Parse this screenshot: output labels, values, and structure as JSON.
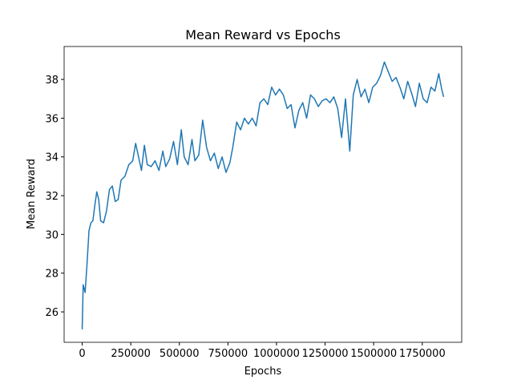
{
  "chart_data": {
    "type": "line",
    "title": "Mean Reward vs Epochs",
    "xlabel": "Epochs",
    "ylabel": "Mean Reward",
    "color": "#1f77b4",
    "x": [
      0,
      5000,
      15000,
      25000,
      35000,
      45000,
      55000,
      65000,
      75000,
      85000,
      95000,
      110000,
      125000,
      140000,
      155000,
      170000,
      185000,
      200000,
      220000,
      240000,
      260000,
      275000,
      290000,
      305000,
      320000,
      335000,
      355000,
      375000,
      395000,
      415000,
      430000,
      450000,
      470000,
      490000,
      510000,
      525000,
      545000,
      565000,
      580000,
      600000,
      620000,
      640000,
      660000,
      680000,
      700000,
      720000,
      740000,
      760000,
      775000,
      795000,
      815000,
      835000,
      855000,
      875000,
      895000,
      915000,
      935000,
      955000,
      975000,
      995000,
      1015000,
      1035000,
      1055000,
      1075000,
      1095000,
      1115000,
      1135000,
      1155000,
      1175000,
      1195000,
      1215000,
      1235000,
      1255000,
      1275000,
      1295000,
      1315000,
      1335000,
      1355000,
      1377000,
      1395000,
      1415000,
      1435000,
      1455000,
      1475000,
      1495000,
      1515000,
      1535000,
      1555000,
      1575000,
      1595000,
      1615000,
      1635000,
      1655000,
      1675000,
      1695000,
      1715000,
      1735000,
      1755000,
      1775000,
      1795000,
      1815000,
      1835000,
      1850000,
      1860000
    ],
    "values": [
      25.1,
      27.4,
      27.0,
      28.5,
      30.2,
      30.6,
      30.7,
      31.5,
      32.2,
      31.8,
      30.7,
      30.6,
      31.2,
      32.3,
      32.5,
      31.7,
      31.8,
      32.8,
      33.0,
      33.6,
      33.8,
      34.7,
      34.0,
      33.3,
      34.6,
      33.6,
      33.5,
      33.8,
      33.3,
      34.3,
      33.5,
      33.9,
      34.8,
      33.6,
      35.4,
      34.0,
      33.6,
      34.9,
      33.8,
      34.1,
      35.9,
      34.5,
      33.8,
      34.2,
      33.4,
      34.0,
      33.2,
      33.7,
      34.5,
      35.8,
      35.4,
      36.0,
      35.7,
      36.0,
      35.6,
      36.8,
      37.0,
      36.7,
      37.6,
      37.2,
      37.5,
      37.2,
      36.5,
      36.7,
      35.5,
      36.4,
      36.8,
      36.0,
      37.2,
      37.0,
      36.6,
      36.9,
      37.0,
      36.8,
      37.1,
      36.5,
      35.0,
      37.0,
      34.3,
      37.2,
      38.0,
      37.1,
      37.5,
      36.8,
      37.6,
      37.8,
      38.2,
      38.9,
      38.4,
      37.9,
      38.1,
      37.6,
      37.0,
      37.9,
      37.3,
      36.6,
      37.8,
      37.0,
      36.8,
      37.6,
      37.4,
      38.3,
      37.5,
      37.1
    ],
    "xlim": [
      -93000,
      1953000
    ],
    "ylim": [
      24.43,
      39.7
    ],
    "xticks": [
      0,
      250000,
      500000,
      750000,
      1000000,
      1250000,
      1500000,
      1750000
    ],
    "yticks": [
      26,
      28,
      30,
      32,
      34,
      36,
      38
    ]
  }
}
